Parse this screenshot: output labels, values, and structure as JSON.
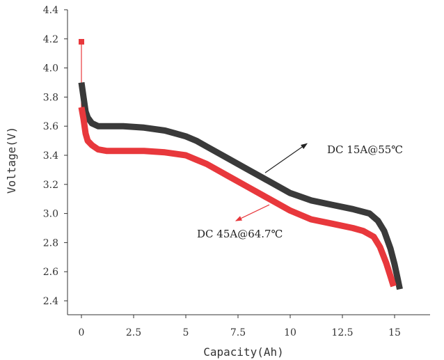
{
  "chart_data": {
    "type": "line",
    "xlabel": "Capacity(Ah)",
    "ylabel": "Voltage(V)",
    "xlim": [
      -0.6,
      17.4
    ],
    "ylim": [
      2.4,
      4.4
    ],
    "x_ticks": [
      0,
      2.5,
      5,
      7.5,
      10,
      12.5,
      15
    ],
    "x_tick_labels": [
      "0",
      "2.5",
      "5",
      "7.5",
      "10",
      "12.5",
      "15"
    ],
    "y_ticks": [
      2.4,
      2.6,
      2.8,
      3.0,
      3.2,
      3.4,
      3.6,
      3.8,
      4.0,
      4.2,
      4.4
    ],
    "y_tick_labels": [
      "2.4",
      "2.6",
      "2.8",
      "3.0",
      "3.2",
      "3.4",
      "3.6",
      "3.8",
      "4.0",
      "4.2",
      "4.4"
    ],
    "grid": false,
    "series": [
      {
        "color": "#3a3a3a",
        "x": [
          0.0,
          0.1,
          0.2,
          0.3,
          0.5,
          0.8,
          1.2,
          2.0,
          3.0,
          4.0,
          5.0,
          5.5,
          6.0,
          7.0,
          8.0,
          9.0,
          10.0,
          11.0,
          12.0,
          13.0,
          13.8,
          14.2,
          14.5,
          14.8,
          15.0,
          15.15,
          15.25
        ],
        "y": [
          3.9,
          3.8,
          3.7,
          3.66,
          3.62,
          3.6,
          3.6,
          3.6,
          3.59,
          3.57,
          3.53,
          3.5,
          3.46,
          3.38,
          3.3,
          3.22,
          3.14,
          3.09,
          3.06,
          3.03,
          3.0,
          2.95,
          2.88,
          2.76,
          2.65,
          2.55,
          2.48
        ]
      },
      {
        "color": "#e8383c",
        "x": [
          0.0,
          0.1,
          0.2,
          0.3,
          0.5,
          0.8,
          1.2,
          2.0,
          3.0,
          4.0,
          5.0,
          5.5,
          6.0,
          7.0,
          8.0,
          9.0,
          10.0,
          11.0,
          12.0,
          13.0,
          13.5,
          14.0,
          14.3,
          14.6,
          14.8,
          14.95
        ],
        "y": [
          3.73,
          3.65,
          3.55,
          3.5,
          3.47,
          3.44,
          3.43,
          3.43,
          3.43,
          3.42,
          3.4,
          3.37,
          3.34,
          3.26,
          3.18,
          3.1,
          3.02,
          2.96,
          2.93,
          2.9,
          2.88,
          2.84,
          2.77,
          2.66,
          2.57,
          2.5
        ]
      }
    ],
    "initial_point": {
      "x": 0.0,
      "y": 4.18,
      "color": "#e8383c"
    },
    "annotations": [
      {
        "text": "DC 15A@55℃",
        "arrow_from": [
          8.8,
          3.28
        ],
        "arrow_to": [
          10.8,
          3.48
        ]
      },
      {
        "text": "DC 45A@64.7℃",
        "arrow_from": [
          9.0,
          3.06
        ],
        "arrow_to": [
          7.4,
          2.95
        ]
      }
    ]
  }
}
